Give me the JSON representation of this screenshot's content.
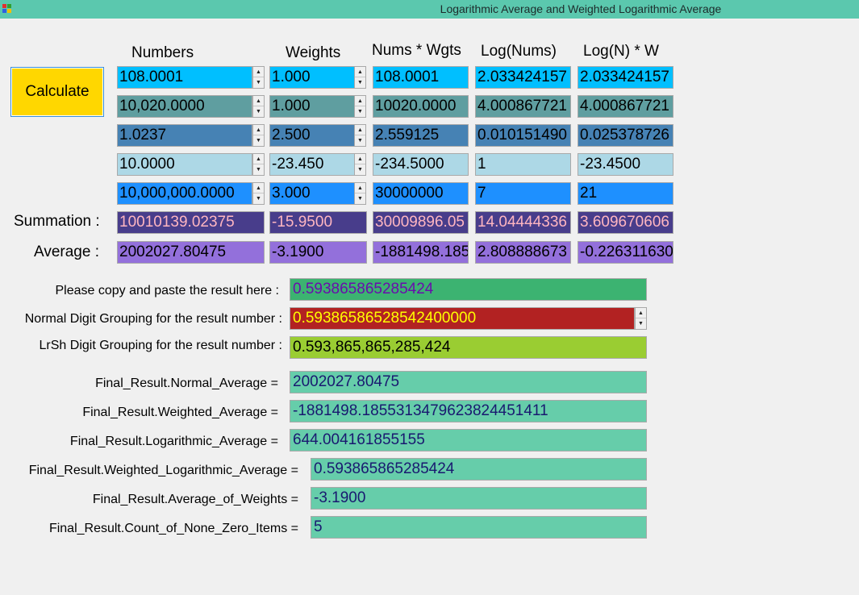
{
  "window": {
    "title": "Logarithmic Average and Weighted Logarithmic Average"
  },
  "headers": {
    "numbers": "Numbers",
    "weights": "Weights",
    "nums_wgts": "Nums * Wgts",
    "log_nums": "Log(Nums)",
    "log_w": "Log(N) * W"
  },
  "calculate_label": "Calculate",
  "rows": [
    {
      "number": "108.0001",
      "weight": "1.000",
      "nw": "108.0001",
      "log": "2.033424157",
      "logw": "2.033424157"
    },
    {
      "number": "10,020.0000",
      "weight": "1.000",
      "nw": "10020.0000",
      "log": "4.000867721",
      "logw": "4.000867721"
    },
    {
      "number": "1.0237",
      "weight": "2.500",
      "nw": "2.559125",
      "log": "0.010151490",
      "logw": "0.025378726"
    },
    {
      "number": "10.0000",
      "weight": "-23.450",
      "nw": "-234.5000",
      "log": "1",
      "logw": "-23.4500"
    },
    {
      "number": "10,000,000.0000",
      "weight": "3.000",
      "nw": "30000000",
      "log": "7",
      "logw": "21"
    }
  ],
  "summation": {
    "label": "Summation :",
    "number": "10010139.02375",
    "weight": "-15.9500",
    "nw": "30009896.05",
    "log": "14.04444336",
    "logw": "3.609670606"
  },
  "average": {
    "label": "Average :",
    "number": "2002027.80475",
    "weight": "-3.1900",
    "nw": "-1881498.185",
    "log": "2.808888673",
    "logw": "-0.226311630"
  },
  "results": {
    "copy_label": "Please copy and paste the result here :",
    "copy_value": "0.593865865285424",
    "normal_grouping_label": "Normal Digit Grouping for the result number :",
    "normal_grouping_value": "0.59386586528542400000",
    "lrsh_grouping_label": "LrSh Digit Grouping for the result number :",
    "lrsh_grouping_value": "0.593,865,865,285,424",
    "normal_avg_label": "Final_Result.Normal_Average =",
    "normal_avg_value": "2002027.80475",
    "weighted_avg_label": "Final_Result.Weighted_Average =",
    "weighted_avg_value": "-1881498.1855313479623824451411",
    "log_avg_label": "Final_Result.Logarithmic_Average =",
    "log_avg_value": "644.004161855155",
    "wlog_avg_label": "Final_Result.Weighted_Logarithmic_Average =",
    "wlog_avg_value": "0.593865865285424",
    "avg_weights_label": "Final_Result.Average_of_Weights =",
    "avg_weights_value": "-3.1900",
    "count_label": "Final_Result.Count_of_None_Zero_Items =",
    "count_value": "5"
  },
  "colors": {
    "titlebar": "#5bc8ae",
    "row_bg": [
      "#00bfff",
      "#5f9ea0",
      "#4682b4",
      "#add8e6",
      "#1e90ff"
    ],
    "summation_bg": "#483d8b",
    "summation_fg": "#ffb6c1",
    "average_bg": "#9370db",
    "copy_bg": "#3cb371",
    "copy_fg": "#6a0dad",
    "normal_bg": "#b22222",
    "normal_fg": "#ffff00",
    "lrsh_bg": "#9acd32",
    "final_bg": "#66cdaa",
    "final_fg": "#191970"
  }
}
